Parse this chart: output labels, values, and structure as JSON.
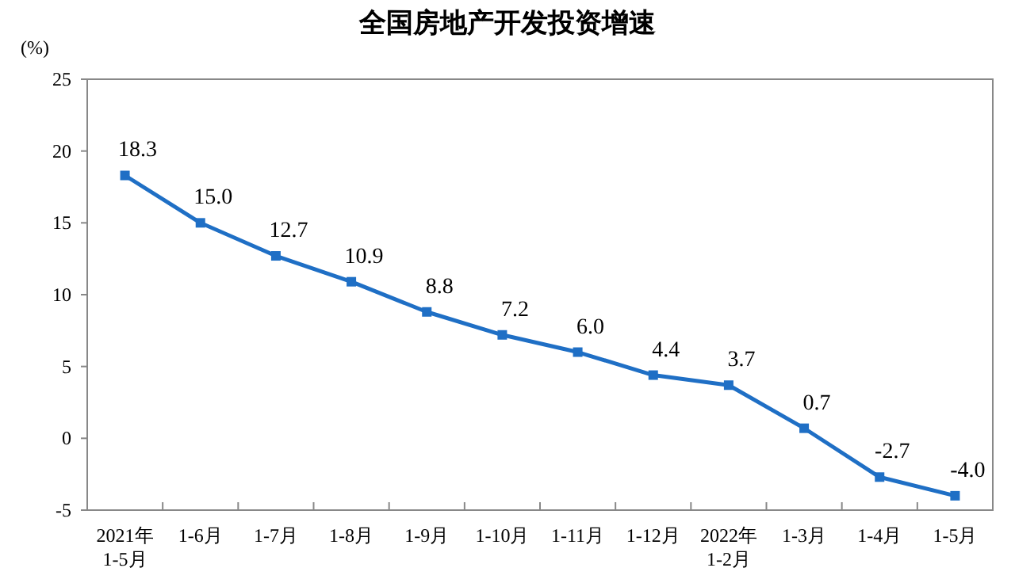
{
  "chart_data": {
    "type": "line",
    "title": "全国房地产开发投资增速",
    "ylabel": "(%)",
    "categories": [
      "2021年\n1-5月",
      "1-6月",
      "1-7月",
      "1-8月",
      "1-9月",
      "1-10月",
      "1-11月",
      "1-12月",
      "2022年\n1-2月",
      "1-3月",
      "1-4月",
      "1-5月"
    ],
    "series": [
      {
        "color": "#1f6fc5",
        "values": [
          18.3,
          15.0,
          12.7,
          10.9,
          8.8,
          7.2,
          6.0,
          4.4,
          3.7,
          0.7,
          -2.7,
          -4.0
        ]
      }
    ],
    "value_labels": [
      "18.3",
      "15.0",
      "12.7",
      "10.9",
      "8.8",
      "7.2",
      "6.0",
      "4.4",
      "3.7",
      "0.7",
      "-2.7",
      "-4.0"
    ],
    "ylim": [
      -5,
      25
    ],
    "yticks": [
      -5,
      0,
      5,
      10,
      15,
      20,
      25
    ],
    "marker": "square",
    "line_style": "solid",
    "grid": false
  }
}
